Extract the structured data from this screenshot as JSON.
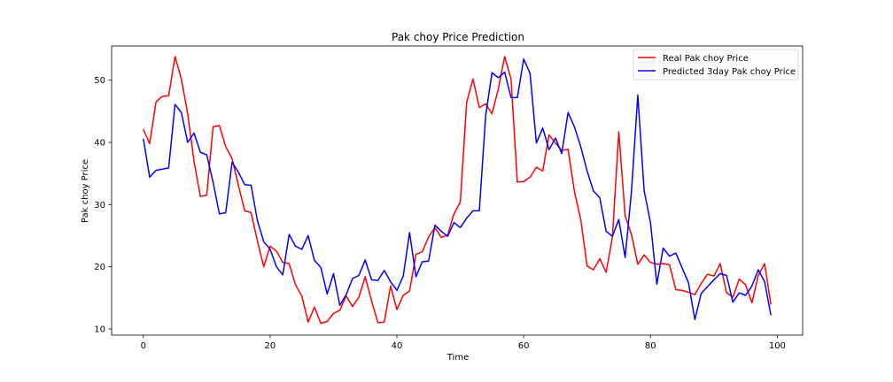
{
  "chart_data": {
    "type": "line",
    "title": "Pak choy Price Prediction",
    "xlabel": "Time",
    "ylabel": "Pak choy Price",
    "xlim": [
      -5,
      104
    ],
    "ylim": [
      9,
      55.5
    ],
    "xticks": [
      0,
      20,
      40,
      60,
      80,
      100
    ],
    "yticks": [
      10,
      20,
      30,
      40,
      50
    ],
    "grid": false,
    "legend_position": "top-right",
    "x": [
      0,
      1,
      2,
      3,
      4,
      5,
      6,
      7,
      8,
      9,
      10,
      11,
      12,
      13,
      14,
      15,
      16,
      17,
      18,
      19,
      20,
      21,
      22,
      23,
      24,
      25,
      26,
      27,
      28,
      29,
      30,
      31,
      32,
      33,
      34,
      35,
      36,
      37,
      38,
      39,
      40,
      41,
      42,
      43,
      44,
      45,
      46,
      47,
      48,
      49,
      50,
      51,
      52,
      53,
      54,
      55,
      56,
      57,
      58,
      59,
      60,
      61,
      62,
      63,
      64,
      65,
      66,
      67,
      68,
      69,
      70,
      71,
      72,
      73,
      74,
      75,
      76,
      77,
      78,
      79,
      80,
      81,
      82,
      83,
      84,
      85,
      86,
      87,
      88,
      89,
      90,
      91,
      92,
      93,
      94,
      95,
      96,
      97,
      98,
      99
    ],
    "series": [
      {
        "name": "Real Pak choy Price",
        "color": "#ff0000",
        "values": [
          42.1,
          39.8,
          46.5,
          47.4,
          47.5,
          53.8,
          50.2,
          44.6,
          36.9,
          31.3,
          31.5,
          42.5,
          42.7,
          39.3,
          37.4,
          33.1,
          29,
          28.7,
          24.1,
          20,
          23.3,
          22.5,
          20.7,
          20.5,
          17.1,
          15.3,
          11.1,
          13.5,
          10.9,
          11.2,
          12.5,
          13,
          15.3,
          13.6,
          15.1,
          18.4,
          14.5,
          11,
          11.1,
          16.9,
          13.1,
          15.4,
          16.1,
          22,
          22.4,
          24.8,
          26.3,
          24.7,
          25.1,
          28.5,
          30.4,
          46.4,
          50.2,
          45.6,
          46.2,
          44.6,
          48.6,
          53.8,
          50.2,
          33.6,
          33.7,
          34.4,
          36,
          35.4,
          41.2,
          39.9,
          38.7,
          38.9,
          32.1,
          27.6,
          20.1,
          19.5,
          21.3,
          19.1,
          24.8,
          41.7,
          28.2,
          25.2,
          20.4,
          21.9,
          20.7,
          20.4,
          20.5,
          20.3,
          16.3,
          16.2,
          15.9,
          15.5,
          17.3,
          18.8,
          18.5,
          20.5,
          15.8,
          15.1,
          18,
          17.1,
          14.2,
          18.6,
          20.5,
          13.9
        ]
      },
      {
        "name": "Predicted 3day Pak choy Price",
        "color": "#0000ff",
        "values": [
          40.6,
          34.4,
          35.5,
          35.7,
          35.9,
          46.1,
          44.8,
          40,
          41.5,
          38.4,
          38,
          33.6,
          28.5,
          28.7,
          36.8,
          35.2,
          33.2,
          33.1,
          27.4,
          24,
          22.8,
          20,
          18.7,
          25.2,
          23.3,
          22.8,
          25,
          21,
          19.9,
          15.6,
          18.9,
          13.8,
          15.5,
          18.1,
          18.6,
          21.1,
          17.9,
          17.8,
          19.4,
          17.6,
          16.2,
          18.5,
          25.5,
          18.4,
          20.8,
          20.9,
          26.7,
          25.7,
          24.9,
          27.1,
          26.3,
          27.8,
          29,
          29,
          44.3,
          51.2,
          50.4,
          51.3,
          47.2,
          47.2,
          53.4,
          51.1,
          39.9,
          42.3,
          38.8,
          40.7,
          38.2,
          44.8,
          42.5,
          39.3,
          35.4,
          32.2,
          31.1,
          25.7,
          24.9,
          27.6,
          21.5,
          32.1,
          47.6,
          32.2,
          27.1,
          17.2,
          23,
          21.7,
          22.2,
          19.8,
          17.4,
          11.5,
          15.7,
          16.8,
          17.9,
          18.9,
          18.6,
          14.3,
          15.8,
          15.4,
          16.9,
          19.5,
          17.6,
          12.2
        ]
      }
    ]
  }
}
